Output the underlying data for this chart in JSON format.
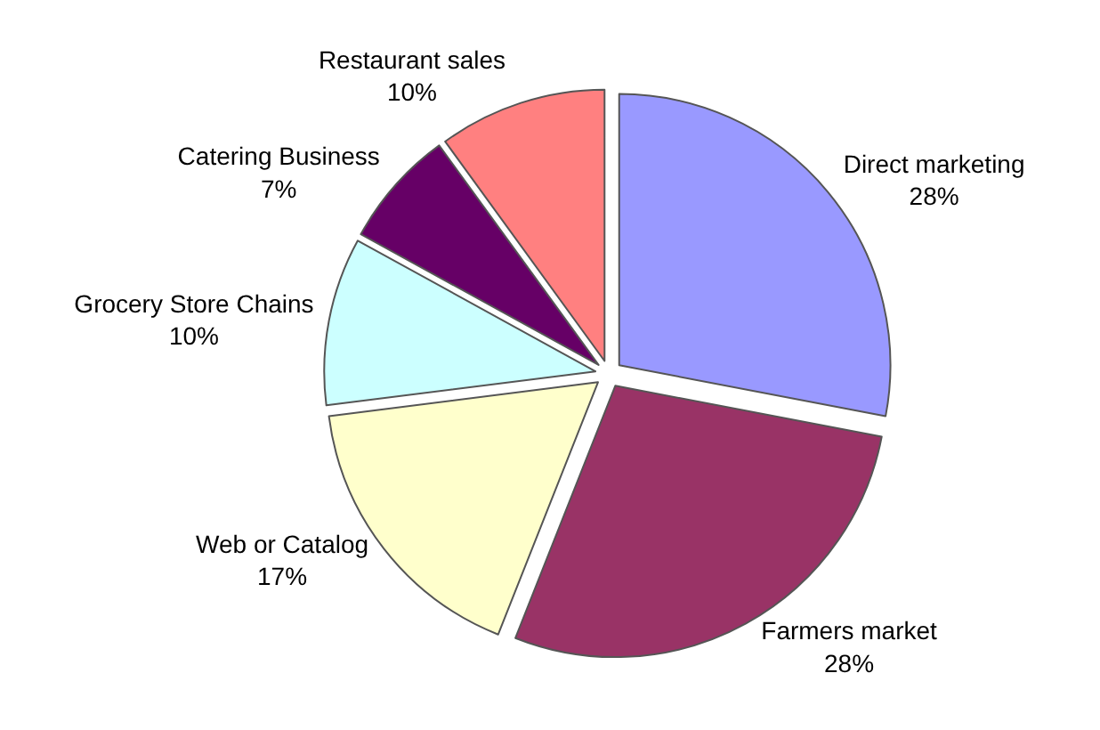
{
  "chart_data": {
    "type": "pie",
    "categories": [
      "Direct marketing",
      "Farmers market",
      "Web or Catalog",
      "Grocery Store Chains",
      "Catering Business",
      "Restaurant sales"
    ],
    "values": [
      28,
      28,
      17,
      10,
      7,
      10
    ],
    "value_labels": [
      "28%",
      "28%",
      "17%",
      "10%",
      "7%",
      "10%"
    ],
    "colors": [
      "#9999ff",
      "#993366",
      "#ffffcc",
      "#ccffff",
      "#660066",
      "#ff8080"
    ],
    "legend": false
  }
}
